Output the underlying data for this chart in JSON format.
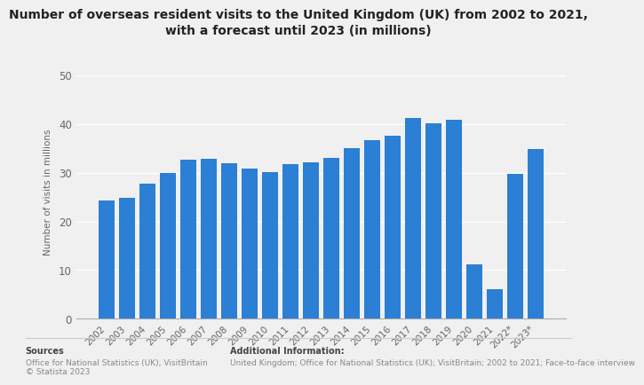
{
  "title": "Number of overseas resident visits to the United Kingdom (UK) from 2002 to 2021,\nwith a forecast until 2023 (in millions)",
  "ylabel": "Number of visits in millions",
  "categories": [
    "2002",
    "2003",
    "2004",
    "2005",
    "2006",
    "2007",
    "2008",
    "2009",
    "2010",
    "2011",
    "2012",
    "2013",
    "2014",
    "2015",
    "2016",
    "2017",
    "2018",
    "2019",
    "2020",
    "2021",
    "2022*",
    "2023*"
  ],
  "values": [
    24.2,
    24.8,
    27.8,
    29.9,
    32.7,
    32.8,
    31.9,
    30.9,
    30.2,
    31.8,
    32.2,
    33.1,
    35.1,
    36.7,
    37.6,
    41.2,
    40.1,
    40.9,
    11.1,
    6.1,
    29.7,
    34.9
  ],
  "bar_color": "#2B7FD4",
  "background_color": "#f0f0f0",
  "plot_bg_color": "#f0f0f0",
  "ylim": [
    0,
    52
  ],
  "yticks": [
    0,
    10,
    20,
    30,
    40,
    50
  ],
  "grid_color": "#ffffff",
  "sources_bold": "Sources",
  "sources_text": "Office for National Statistics (UK); VisitBritain\n© Statista 2023",
  "additional_bold": "Additional Information:",
  "additional_text": "United Kingdom; Office for National Statistics (UK); VisitBritain; 2002 to 2021; Face-to-face interview"
}
